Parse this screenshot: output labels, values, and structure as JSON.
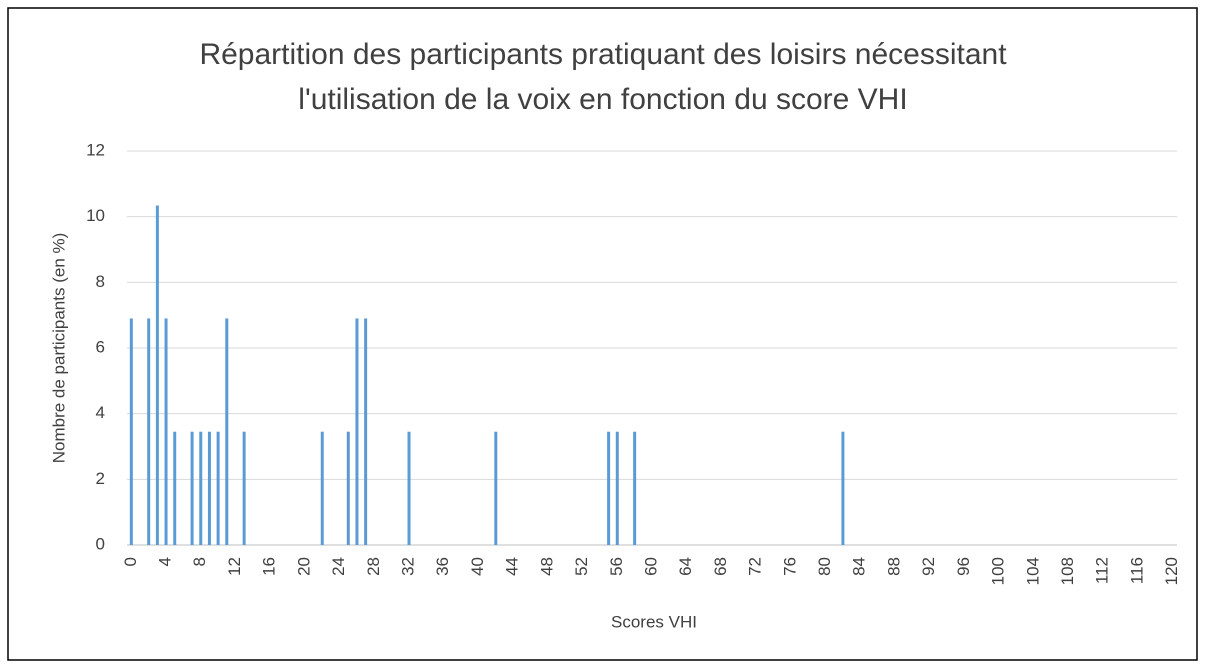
{
  "chart_data": {
    "type": "bar",
    "title": [
      "Répartition des participants pratiquant des loisirs nécessitant",
      "l'utilisation de la voix en fonction du score VHI"
    ],
    "x_label": "Scores VHI",
    "y_label": "Nombre de participants (en %)",
    "x": [
      0,
      2,
      3,
      4,
      5,
      7,
      8,
      9,
      10,
      11,
      13,
      22,
      25,
      26,
      27,
      32,
      42,
      55,
      56,
      58,
      82
    ],
    "values": [
      6.9,
      6.9,
      10.34,
      6.9,
      3.45,
      3.45,
      3.45,
      3.45,
      3.45,
      6.9,
      3.45,
      3.45,
      3.45,
      6.9,
      6.9,
      3.45,
      3.45,
      3.45,
      3.45,
      3.45,
      3.45
    ],
    "color": "#5b9bd5",
    "xlim": [
      -0.5,
      120.5
    ],
    "xticks": [
      0,
      4,
      8,
      12,
      16,
      20,
      24,
      28,
      32,
      36,
      40,
      44,
      48,
      52,
      56,
      60,
      64,
      68,
      72,
      76,
      80,
      84,
      88,
      92,
      96,
      100,
      104,
      108,
      112,
      116,
      120
    ],
    "ylim": [
      0,
      12
    ],
    "yticks": [
      0,
      2,
      4,
      6,
      8,
      10,
      12
    ],
    "grid": true
  }
}
